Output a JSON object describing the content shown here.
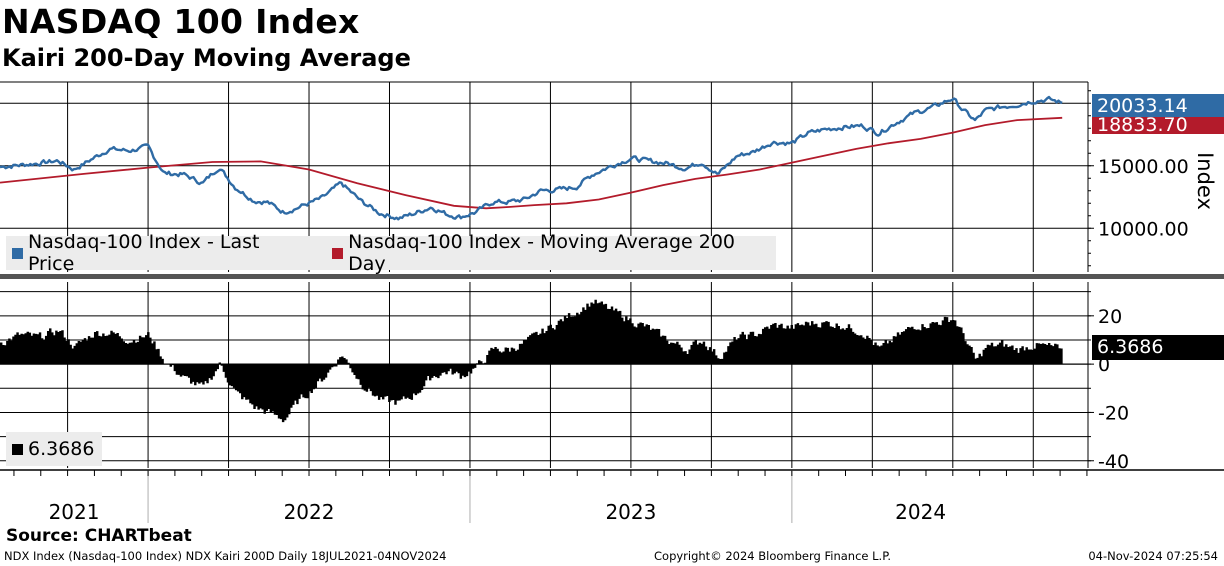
{
  "title": "NASDAQ 100 Index",
  "subtitle": "Kairi 200-Day Moving Average",
  "legend": {
    "last_price": "Nasdaq-100 Index - Last Price",
    "ma200": "Nasdaq-100 Index - Moving Average 200 Day",
    "kairi": "6.3686"
  },
  "source": "Source: CHARTbeat",
  "footer": {
    "left": "NDX Index (Nasdaq-100 Index) NDX Kairi 200D  Daily 18JUL2021-04NOV2024",
    "center": "Copyright© 2024 Bloomberg Finance L.P.",
    "right": "04-Nov-2024 07:25:54"
  },
  "colors": {
    "price": "#2f6ba5",
    "ma": "#b31b2b",
    "kairi": "#000000",
    "grid": "#000000"
  },
  "chart_data": [
    {
      "type": "line",
      "title": "NASDAQ 100 Index",
      "ylabel": "Index",
      "ylim": [
        6500,
        21700
      ],
      "yticks": [
        "10000.00",
        "15000.00"
      ],
      "xlim": [
        2021.54,
        2024.92
      ],
      "year_labels": [
        "2021",
        "2022",
        "2023",
        "2024"
      ],
      "last_values": {
        "price": "20033.14",
        "ma200": "18833.70"
      },
      "series": [
        {
          "name": "Nasdaq-100 Index - Last Price",
          "x": [
            2021.54,
            2021.6,
            2021.66,
            2021.72,
            2021.77,
            2021.83,
            2021.88,
            2021.94,
            2022.0,
            2022.05,
            2022.11,
            2022.17,
            2022.22,
            2022.27,
            2022.33,
            2022.37,
            2022.42,
            2022.46,
            2022.54,
            2022.6,
            2022.66,
            2022.72,
            2022.78,
            2022.83,
            2022.88,
            2022.93,
            2022.97,
            2023.02,
            2023.07,
            2023.12,
            2023.17,
            2023.22,
            2023.28,
            2023.33,
            2023.38,
            2023.44,
            2023.5,
            2023.55,
            2023.61,
            2023.67,
            2023.72,
            2023.77,
            2023.83,
            2023.88,
            2023.94,
            2024.0,
            2024.05,
            2024.1,
            2024.16,
            2024.22,
            2024.27,
            2024.32,
            2024.38,
            2024.44,
            2024.5,
            2024.53,
            2024.57,
            2024.6,
            2024.65,
            2024.7,
            2024.75,
            2024.8,
            2024.84
          ],
          "values": [
            14900,
            15050,
            15200,
            15400,
            14700,
            15600,
            16350,
            16200,
            16500,
            14400,
            14300,
            13600,
            14900,
            13300,
            12200,
            12100,
            11300,
            11600,
            12400,
            13600,
            12200,
            11200,
            10800,
            11200,
            11700,
            11100,
            10900,
            11300,
            12100,
            12100,
            12300,
            13000,
            13100,
            13300,
            14300,
            15000,
            15600,
            15400,
            15200,
            14800,
            15300,
            14300,
            15800,
            16100,
            16900,
            16800,
            17600,
            17900,
            18100,
            18200,
            17600,
            18400,
            19200,
            19700,
            20400,
            19500,
            18600,
            19400,
            19700,
            19900,
            20200,
            20300,
            20033
          ]
        },
        {
          "name": "Nasdaq-100 Index - Moving Average 200 Day",
          "x": [
            2021.54,
            2021.8,
            2022.0,
            2022.2,
            2022.35,
            2022.5,
            2022.65,
            2022.8,
            2022.95,
            2023.05,
            2023.12,
            2023.2,
            2023.3,
            2023.4,
            2023.5,
            2023.6,
            2023.7,
            2023.8,
            2023.9,
            2024.0,
            2024.1,
            2024.2,
            2024.3,
            2024.4,
            2024.5,
            2024.6,
            2024.7,
            2024.84
          ],
          "values": [
            13650,
            14350,
            14850,
            15300,
            15350,
            14700,
            13600,
            12650,
            11800,
            11600,
            11700,
            11850,
            12000,
            12300,
            12850,
            13450,
            13950,
            14300,
            14700,
            15250,
            15800,
            16350,
            16800,
            17150,
            17650,
            18250,
            18650,
            18833.7
          ]
        }
      ]
    },
    {
      "type": "area",
      "title": "NDX Kairi 200D",
      "ylim": [
        -43,
        34
      ],
      "yticks": [
        "20",
        "0",
        "-20",
        "-40"
      ],
      "last_value": "6.3686",
      "series": [
        {
          "name": "NDX Kairi 200D",
          "x": [
            2021.54,
            2021.6,
            2021.66,
            2021.72,
            2021.77,
            2021.83,
            2021.88,
            2021.94,
            2022.0,
            2022.05,
            2022.11,
            2022.17,
            2022.22,
            2022.27,
            2022.33,
            2022.37,
            2022.42,
            2022.46,
            2022.54,
            2022.6,
            2022.66,
            2022.72,
            2022.78,
            2022.83,
            2022.88,
            2022.93,
            2022.97,
            2023.02,
            2023.07,
            2023.12,
            2023.17,
            2023.22,
            2023.28,
            2023.33,
            2023.38,
            2023.44,
            2023.5,
            2023.55,
            2023.61,
            2023.67,
            2023.72,
            2023.77,
            2023.83,
            2023.88,
            2023.94,
            2024.0,
            2024.05,
            2024.1,
            2024.16,
            2024.22,
            2024.27,
            2024.32,
            2024.38,
            2024.44,
            2024.5,
            2024.53,
            2024.57,
            2024.6,
            2024.65,
            2024.7,
            2024.75,
            2024.8,
            2024.84
          ],
          "values": [
            9,
            12,
            11,
            14,
            7,
            13,
            13,
            10,
            12,
            1,
            -6,
            -10,
            0,
            -12,
            -18,
            -20,
            -23,
            -16,
            -6,
            4,
            -8,
            -15,
            -16,
            -12,
            -5,
            -3,
            -5,
            -1,
            6,
            6,
            9,
            13,
            18,
            22,
            26,
            22,
            18,
            15,
            10,
            6,
            10,
            3,
            11,
            12,
            16,
            15,
            17,
            17,
            16,
            13,
            6,
            11,
            16,
            17,
            19,
            12,
            1,
            7,
            8,
            6,
            8,
            7,
            6.3686
          ]
        }
      ]
    }
  ]
}
